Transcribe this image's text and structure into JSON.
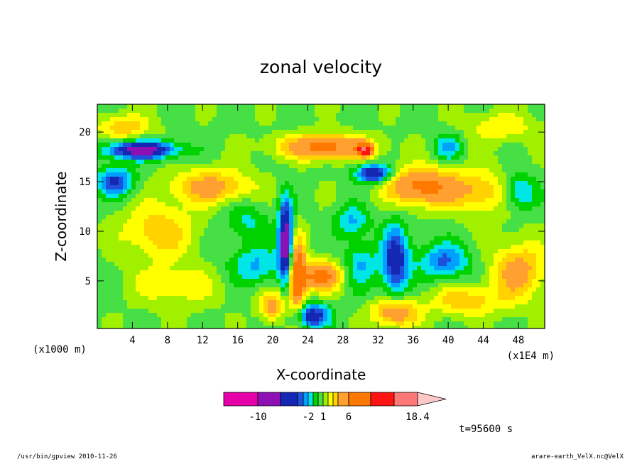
{
  "footer": {
    "left": "/usr/bin/gpview   2010-11-26",
    "right": "arare-earth_VelX.nc@VelX"
  },
  "chart_data": {
    "type": "heatmap",
    "title": "zonal velocity",
    "xlabel": "X-coordinate",
    "ylabel": "Z-coordinate",
    "x_unit": "(x1E4 m)",
    "y_unit": "(x1000 m)",
    "xlim": [
      0,
      51
    ],
    "ylim": [
      0.2,
      22.8
    ],
    "x_ticks": [
      4,
      8,
      12,
      16,
      20,
      24,
      28,
      32,
      36,
      40,
      44,
      48
    ],
    "y_ticks": [
      5,
      10,
      15,
      20
    ],
    "time_label": "t=95600 s",
    "colorbar": {
      "levels": [
        -14,
        -10,
        -6,
        -4,
        -3,
        -2,
        -1,
        0,
        1,
        2,
        3,
        4,
        6,
        10,
        14,
        18.4
      ],
      "labels": [
        "-10",
        "-2",
        "1",
        "6",
        "18.4"
      ],
      "label_values": [
        -10,
        -2,
        1,
        6,
        18.4
      ],
      "colors": [
        "#e600aa",
        "#8c10b4",
        "#1428b4",
        "#1e50dc",
        "#00a0ff",
        "#00e6e6",
        "#00d200",
        "#46e046",
        "#a0f000",
        "#ffff00",
        "#ffd200",
        "#ffa030",
        "#ff7800",
        "#ff1414",
        "#ff7878",
        "#ffc8c8"
      ],
      "extend": "max"
    },
    "features": [
      {
        "x": 5,
        "z": 18.2,
        "value": -8,
        "sx": 4.0,
        "sz": 0.9
      },
      {
        "x": 2,
        "z": 15.0,
        "value": -5,
        "sx": 2.2,
        "sz": 1.4
      },
      {
        "x": 3,
        "z": 20.5,
        "value": 3,
        "sx": 3.0,
        "sz": 1.3
      },
      {
        "x": 7,
        "z": 10.0,
        "value": 3,
        "sx": 4.0,
        "sz": 2.8
      },
      {
        "x": 13,
        "z": 14.5,
        "value": 4,
        "sx": 4.5,
        "sz": 1.7
      },
      {
        "x": 9,
        "z": 4.5,
        "value": 2,
        "sx": 5.0,
        "sz": 2.0
      },
      {
        "x": 18,
        "z": 6.5,
        "value": -3,
        "sx": 3.0,
        "sz": 2.0
      },
      {
        "x": 17,
        "z": 11.0,
        "value": -2,
        "sx": 2.5,
        "sz": 2.0
      },
      {
        "x": 21.5,
        "z": 9.0,
        "value": -9,
        "sx": 0.8,
        "sz": 4.0
      },
      {
        "x": 22.8,
        "z": 5.5,
        "value": 8,
        "sx": 0.9,
        "sz": 3.5
      },
      {
        "x": 25.5,
        "z": 5.5,
        "value": 6,
        "sx": 2.5,
        "sz": 1.4
      },
      {
        "x": 24.5,
        "z": 1.5,
        "value": -6,
        "sx": 2.0,
        "sz": 1.2
      },
      {
        "x": 20,
        "z": 2.5,
        "value": 4,
        "sx": 1.5,
        "sz": 1.5
      },
      {
        "x": 26,
        "z": 18.5,
        "value": 6,
        "sx": 5.0,
        "sz": 1.2
      },
      {
        "x": 30.5,
        "z": 18.2,
        "value": 12,
        "sx": 0.8,
        "sz": 0.6
      },
      {
        "x": 31.5,
        "z": 15.8,
        "value": -7,
        "sx": 2.0,
        "sz": 0.9
      },
      {
        "x": 29,
        "z": 11.0,
        "value": -3,
        "sx": 2.0,
        "sz": 1.6
      },
      {
        "x": 30,
        "z": 6.5,
        "value": -3,
        "sx": 2.0,
        "sz": 2.2
      },
      {
        "x": 34,
        "z": 7.0,
        "value": -6,
        "sx": 1.5,
        "sz": 3.5
      },
      {
        "x": 34,
        "z": 1.8,
        "value": 5,
        "sx": 2.5,
        "sz": 1.4
      },
      {
        "x": 37,
        "z": 14.5,
        "value": 6,
        "sx": 4.0,
        "sz": 1.8
      },
      {
        "x": 39.5,
        "z": 7.0,
        "value": -4,
        "sx": 3.0,
        "sz": 1.8
      },
      {
        "x": 44,
        "z": 14.0,
        "value": 3,
        "sx": 4.0,
        "sz": 2.2
      },
      {
        "x": 48,
        "z": 14.0,
        "value": -4,
        "sx": 2.0,
        "sz": 1.8
      },
      {
        "x": 48,
        "z": 6.0,
        "value": 4,
        "sx": 3.0,
        "sz": 2.8
      },
      {
        "x": 42,
        "z": 3.0,
        "value": 3,
        "sx": 4.0,
        "sz": 1.5
      },
      {
        "x": 40,
        "z": 18.5,
        "value": -3,
        "sx": 1.5,
        "sz": 1.4
      },
      {
        "x": 46,
        "z": 20.5,
        "value": 2,
        "sx": 4.0,
        "sz": 1.5
      }
    ]
  }
}
